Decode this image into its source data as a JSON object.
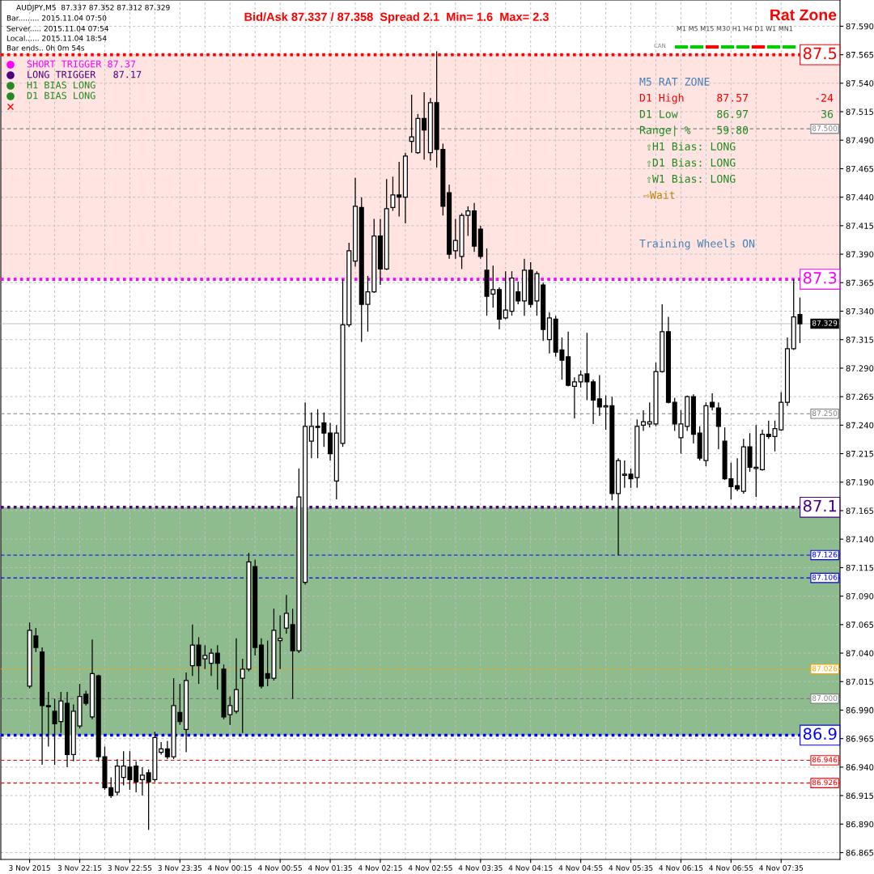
{
  "chart_data": {
    "type": "candlestick",
    "title": "Bid/Ask 87.337 / 87.358  Spread 2.1  Min= 1.6  Max= 2.3",
    "categories": [
      "3 Nov 2015",
      null,
      null,
      null,
      null,
      null,
      null,
      null,
      "3 Nov 22:15",
      null,
      null,
      null,
      null,
      null,
      null,
      null,
      "3 Nov 22:55",
      null,
      null,
      null,
      null,
      null,
      null,
      null,
      "3 Nov 23:35",
      null,
      null,
      null,
      null,
      null,
      null,
      null,
      "4 Nov 00:15",
      null,
      null,
      null,
      null,
      null,
      null,
      null,
      "4 Nov 00:55",
      null,
      null,
      null,
      null,
      null,
      null,
      null,
      "4 Nov 01:35",
      null,
      null,
      null,
      null,
      null,
      null,
      null,
      "4 Nov 02:15",
      null,
      null,
      null,
      null,
      null,
      null,
      null,
      "4 Nov 02:55",
      null,
      null,
      null,
      null,
      null,
      null,
      null,
      "4 Nov 03:35",
      null,
      null,
      null,
      null,
      null,
      null,
      null,
      "4 Nov 04:15",
      null,
      null,
      null,
      null,
      null,
      null,
      null,
      "4 Nov 04:55",
      null,
      null,
      null,
      null,
      null,
      null,
      null,
      "4 Nov 05:35",
      null,
      null,
      null,
      null,
      null,
      null,
      null,
      "4 Nov 06:15",
      null,
      null,
      null,
      null,
      null,
      null,
      null,
      "4 Nov 06:55",
      null,
      null,
      null,
      null,
      null,
      null,
      null,
      "4 Nov 07:35",
      null,
      null,
      null
    ],
    "ohlc": [
      [
        87.011,
        87.067,
        87.009,
        87.06
      ],
      [
        87.055,
        87.062,
        87.041,
        87.045
      ],
      [
        87.041,
        87.045,
        86.942,
        86.994
      ],
      [
        86.994,
        87.006,
        86.958,
        86.993
      ],
      [
        86.989,
        87.0,
        86.942,
        86.978
      ],
      [
        86.98,
        87.006,
        86.97,
        86.998
      ],
      [
        86.996,
        87.006,
        86.94,
        86.951
      ],
      [
        86.951,
        86.995,
        86.945,
        86.989
      ],
      [
        86.976,
        87.013,
        86.974,
        87.002
      ],
      [
        87.004,
        87.007,
        86.994,
        86.996
      ],
      [
        86.984,
        87.052,
        86.982,
        87.022
      ],
      [
        87.02,
        87.021,
        86.945,
        86.949
      ],
      [
        86.949,
        86.958,
        86.92,
        86.922
      ],
      [
        86.922,
        86.931,
        86.913,
        86.915
      ],
      [
        86.918,
        86.947,
        86.915,
        86.941
      ],
      [
        86.931,
        86.954,
        86.924,
        86.941
      ],
      [
        86.94,
        86.954,
        86.92,
        86.929
      ],
      [
        86.941,
        86.945,
        86.918,
        86.927
      ],
      [
        86.929,
        86.94,
        86.915,
        86.933
      ],
      [
        86.935,
        86.938,
        86.885,
        86.927
      ],
      [
        86.929,
        86.971,
        86.927,
        86.966
      ],
      [
        86.953,
        86.962,
        86.951,
        86.956
      ],
      [
        86.956,
        86.963,
        86.947,
        86.949
      ],
      [
        86.949,
        87.018,
        86.947,
        86.994
      ],
      [
        86.988,
        87.013,
        86.977,
        86.98
      ],
      [
        86.973,
        87.023,
        86.953,
        87.016
      ],
      [
        87.029,
        87.065,
        87.02,
        87.047
      ],
      [
        87.047,
        87.054,
        87.013,
        87.029
      ],
      [
        87.035,
        87.047,
        87.026,
        87.038
      ],
      [
        87.031,
        87.044,
        87.02,
        87.04
      ],
      [
        87.04,
        87.047,
        87.008,
        87.031
      ],
      [
        87.026,
        87.03,
        86.982,
        86.984
      ],
      [
        86.986,
        87.002,
        86.977,
        86.994
      ],
      [
        86.989,
        87.053,
        86.987,
        87.008
      ],
      [
        87.018,
        87.035,
        86.97,
        87.026
      ],
      [
        87.026,
        87.128,
        87.024,
        87.12
      ],
      [
        87.116,
        87.122,
        87.038,
        87.045
      ],
      [
        87.047,
        87.053,
        87.009,
        87.011
      ],
      [
        87.022,
        87.051,
        87.011,
        87.018
      ],
      [
        87.018,
        87.079,
        87.016,
        87.06
      ],
      [
        87.051,
        87.073,
        87.026,
        87.053
      ],
      [
        87.062,
        87.091,
        87.057,
        87.075
      ],
      [
        87.065,
        87.079,
        87.0,
        87.042
      ],
      [
        87.042,
        87.202,
        87.04,
        87.177
      ],
      [
        87.102,
        87.26,
        87.1,
        87.239
      ],
      [
        87.226,
        87.251,
        87.211,
        87.239
      ],
      [
        87.239,
        87.254,
        87.211,
        87.238
      ],
      [
        87.242,
        87.251,
        87.221,
        87.233
      ],
      [
        87.233,
        87.242,
        87.209,
        87.215
      ],
      [
        87.191,
        87.24,
        87.175,
        87.233
      ],
      [
        87.224,
        87.368,
        87.221,
        87.328
      ],
      [
        87.328,
        87.4,
        87.326,
        87.393
      ],
      [
        87.384,
        87.457,
        87.379,
        87.432
      ],
      [
        87.431,
        87.44,
        87.313,
        87.346
      ],
      [
        87.346,
        87.371,
        87.322,
        87.357
      ],
      [
        87.357,
        87.421,
        87.356,
        87.406
      ],
      [
        87.406,
        87.421,
        87.363,
        87.377
      ],
      [
        87.377,
        87.456,
        87.376,
        87.43
      ],
      [
        87.431,
        87.458,
        87.428,
        87.442
      ],
      [
        87.442,
        87.471,
        87.423,
        87.44
      ],
      [
        87.44,
        87.479,
        87.417,
        87.476
      ],
      [
        87.489,
        87.53,
        87.479,
        87.493
      ],
      [
        87.479,
        87.513,
        87.478,
        87.509
      ],
      [
        87.509,
        87.532,
        87.473,
        87.499
      ],
      [
        87.479,
        87.527,
        87.472,
        87.523
      ],
      [
        87.523,
        87.568,
        87.466,
        87.482
      ],
      [
        87.482,
        87.487,
        87.424,
        87.432
      ],
      [
        87.444,
        87.451,
        87.386,
        87.39
      ],
      [
        87.393,
        87.421,
        87.386,
        87.402
      ],
      [
        87.388,
        87.426,
        87.377,
        87.424
      ],
      [
        87.424,
        87.432,
        87.406,
        87.428
      ],
      [
        87.428,
        87.435,
        87.392,
        87.397
      ],
      [
        87.412,
        87.415,
        87.386,
        87.388
      ],
      [
        87.376,
        87.395,
        87.336,
        87.353
      ],
      [
        87.355,
        87.38,
        87.343,
        87.359
      ],
      [
        87.359,
        87.361,
        87.324,
        87.333
      ],
      [
        87.334,
        87.375,
        87.333,
        87.341
      ],
      [
        87.34,
        87.375,
        87.336,
        87.369
      ],
      [
        87.357,
        87.366,
        87.346,
        87.349
      ],
      [
        87.349,
        87.386,
        87.336,
        87.376
      ],
      [
        87.376,
        87.383,
        87.343,
        87.346
      ],
      [
        87.349,
        87.375,
        87.336,
        87.373
      ],
      [
        87.363,
        87.365,
        87.314,
        87.324
      ],
      [
        87.315,
        87.339,
        87.303,
        87.334
      ],
      [
        87.333,
        87.336,
        87.3,
        87.304
      ],
      [
        87.306,
        87.317,
        87.28,
        87.297
      ],
      [
        87.3,
        87.322,
        87.274,
        87.275
      ],
      [
        87.274,
        87.282,
        87.246,
        87.278
      ],
      [
        87.278,
        87.288,
        87.273,
        87.284
      ],
      [
        87.285,
        87.321,
        87.262,
        87.278
      ],
      [
        87.278,
        87.28,
        87.241,
        87.262
      ],
      [
        87.263,
        87.284,
        87.248,
        87.256
      ],
      [
        87.256,
        87.266,
        87.236,
        87.257
      ],
      [
        87.257,
        87.265,
        87.174,
        87.18
      ],
      [
        87.18,
        87.211,
        87.126,
        87.209
      ],
      [
        87.196,
        87.209,
        87.185,
        87.197
      ],
      [
        87.197,
        87.202,
        87.185,
        87.193
      ],
      [
        87.194,
        87.245,
        87.185,
        87.239
      ],
      [
        87.24,
        87.253,
        87.235,
        87.243
      ],
      [
        87.241,
        87.26,
        87.238,
        87.243
      ],
      [
        87.241,
        87.295,
        87.239,
        87.287
      ],
      [
        87.287,
        87.346,
        87.286,
        87.322
      ],
      [
        87.322,
        87.335,
        87.259,
        87.26
      ],
      [
        87.26,
        87.264,
        87.235,
        87.241
      ],
      [
        87.229,
        87.253,
        87.215,
        87.241
      ],
      [
        87.239,
        87.266,
        87.235,
        87.265
      ],
      [
        87.265,
        87.267,
        87.224,
        87.232
      ],
      [
        87.233,
        87.239,
        87.209,
        87.211
      ],
      [
        87.209,
        87.26,
        87.204,
        87.257
      ],
      [
        87.26,
        87.268,
        87.253,
        87.256
      ],
      [
        87.255,
        87.26,
        87.219,
        87.239
      ],
      [
        87.226,
        87.238,
        87.192,
        87.193
      ],
      [
        87.193,
        87.207,
        87.175,
        87.186
      ],
      [
        87.187,
        87.211,
        87.182,
        87.184
      ],
      [
        87.182,
        87.228,
        87.18,
        87.221
      ],
      [
        87.221,
        87.233,
        87.199,
        87.203
      ],
      [
        87.202,
        87.24,
        87.177,
        87.203
      ],
      [
        87.201,
        87.236,
        87.2,
        87.232
      ],
      [
        87.232,
        87.244,
        87.228,
        87.23
      ],
      [
        87.23,
        87.244,
        87.217,
        87.237
      ],
      [
        87.236,
        87.269,
        87.235,
        87.26
      ],
      [
        87.26,
        87.317,
        87.257,
        87.307
      ],
      [
        87.307,
        87.368,
        87.306,
        87.335
      ],
      [
        87.337,
        87.352,
        87.312,
        87.329
      ]
    ],
    "ylim": [
      86.859,
      87.613
    ],
    "yticks": [
      {
        "value": 86.865,
        "label": "86.865"
      },
      {
        "value": 86.89,
        "label": "86.890"
      },
      {
        "value": 86.915,
        "label": "86.915"
      },
      {
        "value": 86.94,
        "label": "86.940"
      },
      {
        "value": 86.965,
        "label": "86.965"
      },
      {
        "value": 86.99,
        "label": "86.990"
      },
      {
        "value": 87.015,
        "label": "87.015"
      },
      {
        "value": 87.04,
        "label": "87.040"
      },
      {
        "value": 87.065,
        "label": "87.065"
      },
      {
        "value": 87.09,
        "label": "87.090"
      },
      {
        "value": 87.115,
        "label": "87.115"
      },
      {
        "value": 87.14,
        "label": "87.140"
      },
      {
        "value": 87.165,
        "label": "87.165"
      },
      {
        "value": 87.19,
        "label": "87.190"
      },
      {
        "value": 87.215,
        "label": "87.215"
      },
      {
        "value": 87.24,
        "label": "87.240"
      },
      {
        "value": 87.265,
        "label": "87.265"
      },
      {
        "value": 87.29,
        "label": "87.290"
      },
      {
        "value": 87.315,
        "label": "87.315"
      },
      {
        "value": 87.34,
        "label": "87.340"
      },
      {
        "value": 87.365,
        "label": "87.365"
      },
      {
        "value": 87.39,
        "label": "87.390"
      },
      {
        "value": 87.415,
        "label": "87.415"
      },
      {
        "value": 87.44,
        "label": "87.440"
      },
      {
        "value": 87.465,
        "label": "87.465"
      },
      {
        "value": 87.49,
        "label": "87.490"
      },
      {
        "value": 87.515,
        "label": "87.515"
      },
      {
        "value": 87.54,
        "label": "87.540"
      },
      {
        "value": 87.565,
        "label": "87.565"
      },
      {
        "value": 87.59,
        "label": "87.590"
      }
    ],
    "grid": true,
    "bands": [
      {
        "axis": "y",
        "from": 87.368,
        "to": 87.565,
        "color": "#ffe4e1"
      },
      {
        "axis": "y",
        "from": 86.968,
        "to": 87.168,
        "color": "#8fbc8f"
      }
    ],
    "ref_lines": [
      {
        "axis": "y",
        "value": 87.565,
        "color": "#ff0000",
        "line_style": "dotted"
      },
      {
        "axis": "y",
        "value": 87.368,
        "color": "#ff00ff",
        "line_style": "dotted"
      },
      {
        "axis": "y",
        "value": 87.168,
        "color": "#4b0082",
        "line_style": "dotted"
      },
      {
        "axis": "y",
        "value": 86.968,
        "color": "#0000ff",
        "line_style": "dotted"
      },
      {
        "axis": "y",
        "value": 87.5,
        "label": "87.500",
        "color": "#808080",
        "line_style": "dashed"
      },
      {
        "axis": "y",
        "value": 87.329,
        "label": "87.329",
        "color": "#c0c0c0",
        "line_style": "solid"
      },
      {
        "axis": "y",
        "value": 87.25,
        "label": "87.250",
        "color": "#808080",
        "line_style": "dashed"
      },
      {
        "axis": "y",
        "value": 87.126,
        "label": "87.126",
        "color": "#0000ff",
        "line_style": "dashed"
      },
      {
        "axis": "y",
        "value": 87.106,
        "label": "87.106",
        "color": "#0000ff",
        "line_style": "dashed"
      },
      {
        "axis": "y",
        "value": 87.026,
        "label": "87.026",
        "color": "#ffa500",
        "line_style": "dashed"
      },
      {
        "axis": "y",
        "value": 87.0,
        "label": "87.000",
        "color": "#808080",
        "line_style": "dashed"
      },
      {
        "axis": "y",
        "value": 86.946,
        "label": "86.946",
        "color": "#ff0000",
        "line_style": "dashed"
      },
      {
        "axis": "y",
        "value": 86.926,
        "label": "86.926",
        "color": "#ff0000",
        "line_style": "dashed"
      }
    ],
    "annotations": [
      "AUDJPY,M5  87.337 87.352 87.312 87.329",
      "Bar......... 2015.11.04 07:50",
      "Server..... 2015.11.04 07:54",
      "Local...... 2015.11.04 18:54",
      "Bar ends.. 0h 0m 54s",
      "Rat Zone",
      "M1 M5 M15 M30 H1 H4 D1 W1 MN1",
      "CAN",
      "SHORT TRIGGER 87.37",
      "LONG TRIGGER   87.17",
      "H1 BIAS LONG",
      "D1 BIAS LONG",
      "M5 RAT ZONE",
      "D1 High     87.57",
      "-24",
      "D1 Low      86.97",
      "36",
      "Range| %    59.80",
      "⇧H1 Bias: LONG",
      "⇧D1 Bias: LONG",
      "⇧W1 Bias: LONG",
      "⇨Wait",
      "Training Wheels ON",
      {
        "text": "87.5",
        "y": 87.565
      },
      {
        "text": "87.3",
        "y": 87.368
      },
      {
        "text": "87.1",
        "y": 87.168
      },
      {
        "text": "86.9",
        "y": 86.968
      }
    ]
  }
}
